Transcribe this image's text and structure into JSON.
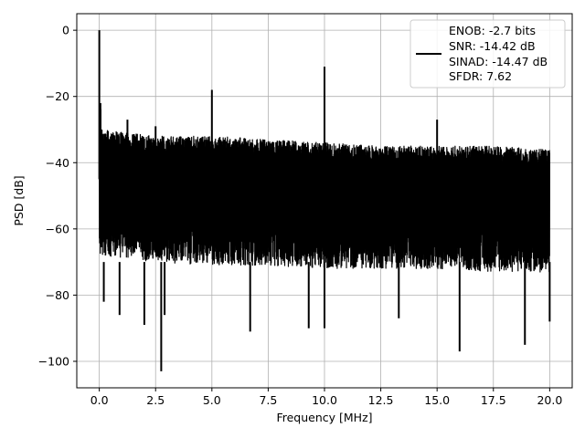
{
  "chart_data": {
    "type": "line",
    "title": "",
    "xlabel": "Frequency [MHz]",
    "ylabel": "PSD [dB]",
    "xlim": [
      -1.0,
      21.0
    ],
    "ylim": [
      -108,
      5
    ],
    "x_ticks": [
      0.0,
      2.5,
      5.0,
      7.5,
      10.0,
      12.5,
      15.0,
      17.5,
      20.0
    ],
    "x_tick_labels": [
      "0.0",
      "2.5",
      "5.0",
      "7.5",
      "10.0",
      "12.5",
      "15.0",
      "17.5",
      "20.0"
    ],
    "y_ticks": [
      0,
      -20,
      -40,
      -60,
      -80,
      -100
    ],
    "y_tick_labels": [
      "0",
      "−20",
      "−40",
      "−60",
      "−80",
      "−100"
    ],
    "grid": true,
    "legend_position": "top-right",
    "legend_lines": [
      "ENOB: -2.7 bits",
      "SNR: -14.42 dB",
      "SINAD: -14.47 dB",
      "SFDR: 7.62"
    ],
    "series_color": "#000000",
    "series": [
      {
        "freq_range_mhz": [
          0.0,
          20.0
        ],
        "noise_floor_envelope": {
          "x": [
            0.1,
            2.5,
            5.0,
            7.5,
            10.0,
            12.5,
            15.0,
            17.5,
            20.0
          ],
          "upper_db": [
            -30,
            -32,
            -32,
            -33,
            -34,
            -35,
            -35,
            -35,
            -36
          ],
          "lower_db": [
            -68,
            -70,
            -71,
            -71,
            -72,
            -72,
            -72,
            -73,
            -73
          ]
        },
        "peaks": [
          {
            "x": 0.0,
            "y": 0
          },
          {
            "x": 0.05,
            "y": -22
          },
          {
            "x": 1.25,
            "y": -27
          },
          {
            "x": 2.5,
            "y": -29
          },
          {
            "x": 5.0,
            "y": -18
          },
          {
            "x": 10.0,
            "y": -11
          },
          {
            "x": 15.0,
            "y": -27
          }
        ],
        "dips": [
          {
            "x": 0.2,
            "y": -82
          },
          {
            "x": 0.9,
            "y": -86
          },
          {
            "x": 2.0,
            "y": -89
          },
          {
            "x": 2.75,
            "y": -103
          },
          {
            "x": 2.9,
            "y": -86
          },
          {
            "x": 6.7,
            "y": -91
          },
          {
            "x": 9.3,
            "y": -90
          },
          {
            "x": 10.0,
            "y": -90
          },
          {
            "x": 13.3,
            "y": -87
          },
          {
            "x": 16.0,
            "y": -97
          },
          {
            "x": 18.9,
            "y": -95
          },
          {
            "x": 20.0,
            "y": -88
          }
        ]
      }
    ]
  }
}
